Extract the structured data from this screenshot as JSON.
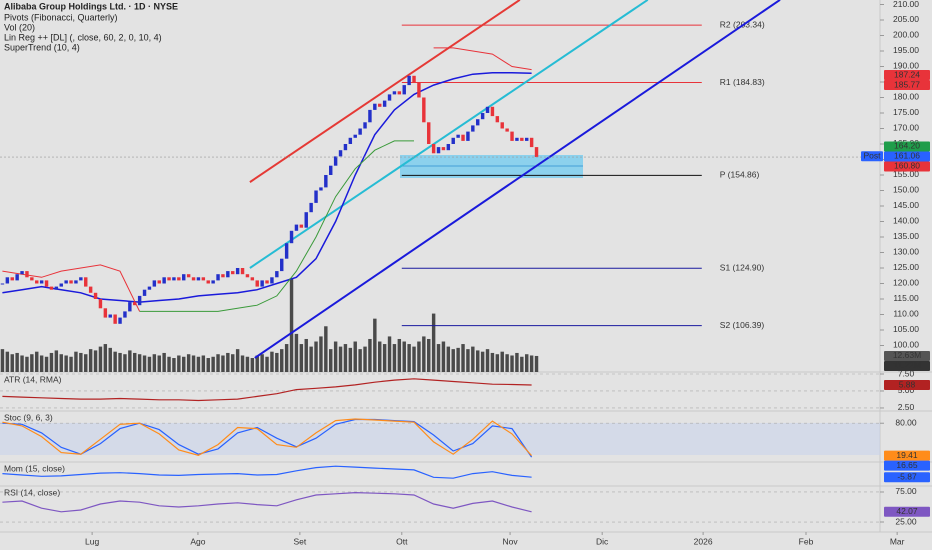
{
  "chart_data": {
    "type": "candlestick",
    "title": "Alibaba Group Holdings Ltd. · 1D · NYSE",
    "indicators": [
      "Pivots (Fibonacci, Quarterly)",
      "Vol (20)",
      "Lin Reg ++ [DL] (, close, 60, 2, 0, 10, 4)",
      "SuperTrend (10, 4)"
    ],
    "up_color": "#2330c9",
    "down_color": "#e8333a",
    "close": [
      120,
      122,
      121,
      123,
      124,
      122,
      121,
      120,
      121,
      119,
      118,
      119,
      120,
      121,
      120,
      121,
      122,
      119,
      117,
      115,
      112,
      109,
      110,
      107,
      109,
      111,
      114,
      113,
      116,
      118,
      119,
      121,
      120,
      122,
      121,
      122,
      121,
      123,
      122,
      121,
      122,
      121,
      120,
      121,
      123,
      122,
      124,
      123,
      125,
      123,
      122,
      121,
      119,
      121,
      120,
      122,
      124,
      128,
      133,
      137,
      139,
      138,
      143,
      146,
      150,
      151,
      155,
      158,
      161,
      163,
      165,
      167,
      168,
      170,
      172,
      176,
      178,
      177,
      179,
      181,
      182,
      181,
      184,
      187,
      185,
      180,
      172,
      165,
      162,
      164,
      163,
      165,
      167,
      168,
      166,
      169,
      171,
      173,
      175,
      177,
      174,
      172,
      170,
      169,
      166,
      167,
      166,
      167,
      164,
      160.8
    ],
    "xlim": [
      -0.5,
      179.1
    ],
    "xticks": [
      {
        "value": 18.3,
        "label": "Lug"
      },
      {
        "value": 39.9,
        "label": "Ago"
      },
      {
        "value": 60.7,
        "label": "Set"
      },
      {
        "value": 81.5,
        "label": "Ott"
      },
      {
        "value": 103.6,
        "label": "Nov"
      },
      {
        "value": 122.4,
        "label": "Dic"
      },
      {
        "value": 143,
        "label": "2026"
      },
      {
        "value": 164,
        "label": "Feb"
      },
      {
        "value": 182.6,
        "label": "Mar"
      }
    ],
    "ylim": [
      91.45,
      211.45
    ],
    "yticks": [
      {
        "value": 210,
        "label": "210.00"
      },
      {
        "value": 205,
        "label": "205.00"
      },
      {
        "value": 200,
        "label": "200.00"
      },
      {
        "value": 195,
        "label": "195.00"
      },
      {
        "value": 190,
        "label": "190.00"
      },
      {
        "value": 185,
        "label": "185.00"
      },
      {
        "value": 180,
        "label": "180.00"
      },
      {
        "value": 175,
        "label": "175.00"
      },
      {
        "value": 170,
        "label": "170.00"
      },
      {
        "value": 165,
        "label": "165.00"
      },
      {
        "value": 160,
        "label": "160.00"
      },
      {
        "value": 155,
        "label": "155.00"
      },
      {
        "value": 150,
        "label": "150.00"
      },
      {
        "value": 145,
        "label": "145.00"
      },
      {
        "value": 140,
        "label": "140.00"
      },
      {
        "value": 135,
        "label": "135.00"
      },
      {
        "value": 130,
        "label": "130.00"
      },
      {
        "value": 125,
        "label": "125.00"
      },
      {
        "value": 120,
        "label": "120.00"
      },
      {
        "value": 115,
        "label": "115.00"
      },
      {
        "value": 110,
        "label": "110.00"
      },
      {
        "value": 105,
        "label": "105.00"
      },
      {
        "value": 100,
        "label": "100.00"
      }
    ],
    "price_tags": [
      {
        "value": 187.24,
        "color": "#e8333a"
      },
      {
        "value": 185.77,
        "color": "#e8333a"
      },
      {
        "value": 164.2,
        "label": "164.20",
        "color": "#1f9d4a"
      },
      {
        "value": 161.06,
        "color": "#2962ff"
      },
      {
        "value": 160.8,
        "label": "160.80",
        "color": "#e8333a"
      }
    ],
    "post_label": "Post",
    "pivots": [
      {
        "label": "R2 (203.34)",
        "value": 203.34,
        "color": "#e8333a"
      },
      {
        "label": "R1 (184.83)",
        "value": 184.83,
        "color": "#e8333a"
      },
      {
        "label": "P (154.86)",
        "value": 154.86,
        "color": "#111111"
      },
      {
        "label": "S1 (124.90)",
        "value": 124.9,
        "color": "#1a1aa0"
      },
      {
        "label": "S2 (106.39)",
        "value": 106.39,
        "color": "#1a1aa0"
      }
    ],
    "channels": [
      {
        "color": "#e53935",
        "x": [
          50.5,
          105.6
        ],
        "values": [
          152.7,
          211.5
        ]
      },
      {
        "color": "#26bcd4",
        "x": [
          50.5,
          131.7
        ],
        "values": [
          125,
          211.5
        ]
      },
      {
        "color": "#1a1adb",
        "x": [
          51.5,
          158.7
        ],
        "values": [
          96,
          211.5
        ]
      }
    ],
    "ind_x": [
      0,
      4,
      8,
      12,
      16,
      20,
      24,
      28,
      32,
      36,
      40,
      44,
      48,
      52,
      56,
      60,
      64,
      68,
      72,
      76,
      80,
      84,
      88,
      92,
      96,
      100,
      104,
      108
    ],
    "lin_reg_color": "#1a1adb",
    "lin_reg": [
      117,
      118,
      119,
      118,
      117,
      115,
      114.5,
      114,
      114.5,
      115,
      116,
      116.5,
      117,
      118,
      120,
      122,
      128,
      140,
      155,
      168,
      176,
      181,
      184,
      186,
      187.5,
      188,
      188,
      187.8
    ],
    "supertrend_up_color": "#3a9a3a",
    "supertrend_up": [
      null,
      null,
      null,
      null,
      null,
      null,
      null,
      111,
      111,
      111,
      111,
      111,
      112,
      113,
      116,
      124,
      135,
      148,
      157,
      163,
      166,
      166,
      null,
      null,
      null,
      null,
      null,
      null
    ],
    "supertrend_down_color": "#e8333a",
    "supertrend_down": [
      124,
      123,
      122,
      124,
      125,
      126,
      124,
      111,
      null,
      null,
      null,
      null,
      null,
      null,
      null,
      null,
      null,
      null,
      null,
      null,
      null,
      null,
      196,
      196,
      195,
      194,
      190,
      189
    ],
    "volume": {
      "color": "#4a4a4a",
      "ylim": [
        0,
        292.9
      ],
      "values": [
        18,
        16,
        14,
        15,
        13,
        12,
        14,
        16,
        13,
        12,
        15,
        17,
        14,
        13,
        12,
        16,
        15,
        14,
        18,
        17,
        20,
        22,
        19,
        16,
        15,
        14,
        17,
        15,
        14,
        13,
        12,
        14,
        13,
        15,
        12,
        11,
        13,
        12,
        14,
        13,
        12,
        13,
        11,
        12,
        14,
        13,
        15,
        14,
        18,
        13,
        12,
        11,
        13,
        14,
        12,
        16,
        15,
        18,
        22,
        74,
        30,
        22,
        26,
        20,
        24,
        28,
        36,
        18,
        24,
        20,
        22,
        19,
        24,
        18,
        20,
        26,
        42,
        24,
        22,
        28,
        22,
        26,
        24,
        22,
        20,
        24,
        28,
        26,
        46,
        22,
        24,
        20,
        18,
        19,
        22,
        18,
        20,
        17,
        16,
        18,
        15,
        14,
        16,
        14,
        13,
        15,
        12,
        14,
        13,
        12.63
      ],
      "tags": [
        {
          "value": 12.63,
          "label": "12.63M",
          "color": "#555555"
        },
        {
          "value": 11.22,
          "label": "11.22M",
          "color": "#333333"
        }
      ]
    },
    "panes": [
      {
        "title": "ATR (14, RMA)",
        "ylim": [
          2.2,
          7.5
        ],
        "yticks": [
          {
            "value": 7.5,
            "label": "7.50"
          },
          {
            "value": 5,
            "label": "5.00"
          },
          {
            "value": 2.5,
            "label": "2.50"
          }
        ],
        "series": [
          {
            "color": "#b22222",
            "values": [
              4.2,
              4.1,
              4.0,
              3.9,
              3.8,
              3.8,
              3.9,
              3.8,
              3.7,
              3.7,
              3.6,
              3.7,
              3.8,
              4.2,
              4.6,
              5.2,
              5.4,
              5.6,
              5.9,
              6.3,
              6.6,
              6.8,
              6.6,
              6.4,
              6.2,
              6.0,
              5.95,
              5.88
            ]
          }
        ],
        "tags": [
          {
            "value": 5.88,
            "color": "#b22222"
          }
        ]
      },
      {
        "title": "Stoc (9, 6, 3)",
        "ylim": [
          7.5,
          101
        ],
        "yticks": [
          {
            "value": 80,
            "label": "80.00"
          }
        ],
        "series": [
          {
            "color": "#2962ff",
            "values": [
              80,
              78,
              62,
              35,
              22,
              42,
              70,
              80,
              68,
              40,
              22,
              32,
              62,
              72,
              52,
              36,
              52,
              78,
              87,
              87,
              85,
              83,
              58,
              28,
              42,
              75,
              70,
              16.65
            ]
          },
          {
            "color": "#ff8c1a",
            "values": [
              82,
              75,
              55,
              25,
              22,
              50,
              78,
              80,
              60,
              30,
              20,
              40,
              72,
              70,
              40,
              35,
              62,
              85,
              88,
              86,
              84,
              82,
              45,
              22,
              50,
              84,
              60,
              19.41
            ]
          }
        ],
        "tags": [
          {
            "value": 19.41,
            "color": "#ff8c1a"
          },
          {
            "value": 16.65,
            "color": "#2962ff"
          }
        ]
      },
      {
        "title": "Mom (15, close)",
        "ylim": [
          -25,
          25
        ],
        "yticks": [],
        "series": [
          {
            "color": "#2962ff",
            "values": [
              2,
              -1,
              -4,
              -3,
              0,
              3,
              4,
              2,
              -1,
              -2,
              0,
              1,
              2,
              -1,
              0,
              8,
              15,
              18,
              16,
              14,
              12,
              10,
              -6,
              -8,
              2,
              6,
              -2,
              -5.87
            ]
          }
        ],
        "tags": [
          {
            "value": -5.87,
            "color": "#2962ff"
          }
        ]
      },
      {
        "title": "RSI (14, close)",
        "ylim": [
          11.7,
          83.3
        ],
        "yticks": [
          {
            "value": 75,
            "label": "75.00"
          },
          {
            "value": 25,
            "label": "25.00"
          }
        ],
        "series": [
          {
            "color": "#7e57c2",
            "values": [
              58,
              60,
              48,
              42,
              45,
              55,
              60,
              58,
              52,
              50,
              52,
              55,
              57,
              54,
              52,
              62,
              70,
              72,
              74,
              73,
              72,
              70,
              55,
              48,
              56,
              60,
              50,
              42.07
            ]
          }
        ],
        "tags": [
          {
            "value": 42.07,
            "color": "#7e57c2"
          }
        ]
      }
    ]
  }
}
